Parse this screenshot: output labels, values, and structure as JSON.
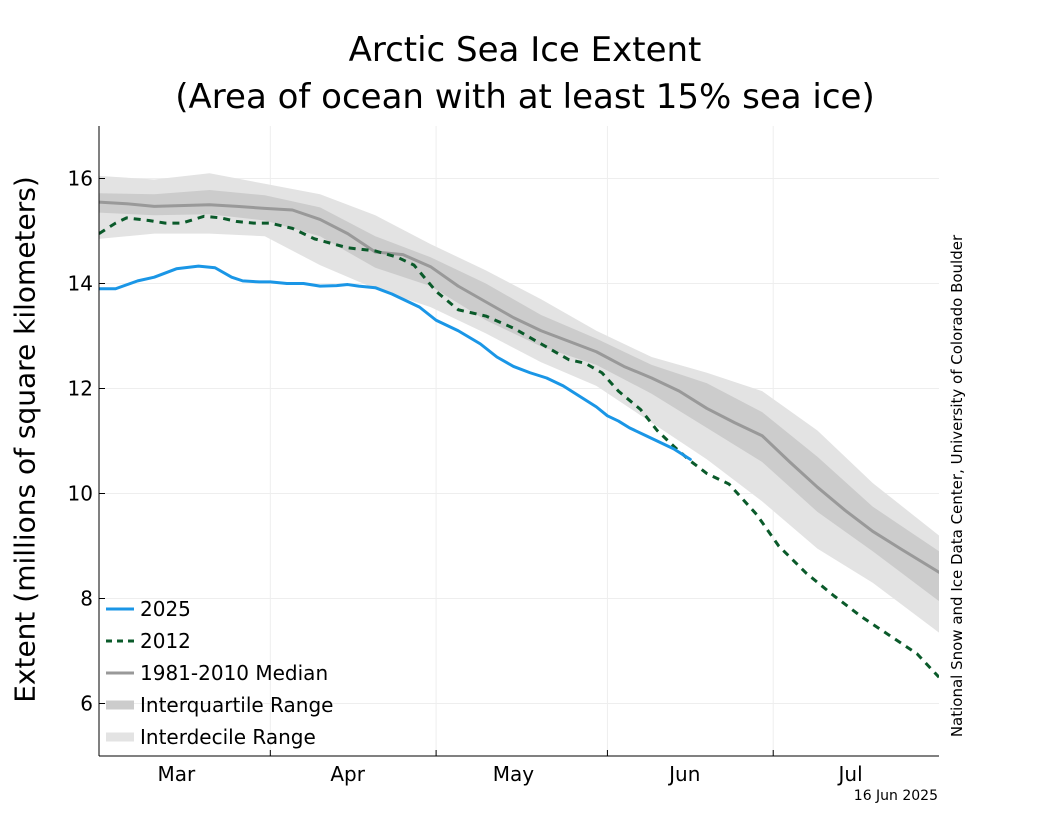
{
  "chart_data": {
    "type": "line",
    "title": "Arctic Sea Ice Extent",
    "subtitle": "(Area of ocean with at least 15% sea ice)",
    "ylabel": "Extent (millions of square kilometers)",
    "xlabel": "",
    "ylim": [
      5,
      17
    ],
    "yticks": [
      6,
      8,
      10,
      12,
      14,
      16
    ],
    "xrange_days": [
      0,
      152
    ],
    "x_ticks": [
      {
        "label": "Mar",
        "day": 14
      },
      {
        "label": "Apr",
        "day": 45
      },
      {
        "label": "May",
        "day": 75
      },
      {
        "label": "Jun",
        "day": 106
      },
      {
        "label": "Jul",
        "day": 136
      }
    ],
    "month_boundaries_days": [
      31,
      61,
      92,
      122
    ],
    "grid": true,
    "legend_position": "bottom-left",
    "credit": "National Snow and Ice Data Center, University of Colorado Boulder",
    "date_stamp": "16 Jun 2025",
    "series": [
      {
        "name": "2025",
        "style": "solid",
        "color": "#1a96e6",
        "x": [
          0,
          3,
          7,
          10,
          14,
          18,
          21,
          24,
          26,
          29,
          31,
          34,
          37,
          40,
          43,
          45,
          47,
          50,
          53,
          55,
          58,
          61,
          65,
          69,
          72,
          75,
          78,
          81,
          84,
          87,
          90,
          92,
          94,
          96,
          99,
          102,
          104,
          107
        ],
        "y": [
          13.9,
          13.9,
          14.05,
          14.12,
          14.28,
          14.33,
          14.3,
          14.12,
          14.05,
          14.03,
          14.03,
          14.0,
          14.0,
          13.95,
          13.96,
          13.98,
          13.95,
          13.92,
          13.8,
          13.7,
          13.55,
          13.3,
          13.1,
          12.85,
          12.6,
          12.42,
          12.3,
          12.2,
          12.05,
          11.85,
          11.65,
          11.48,
          11.38,
          11.25,
          11.1,
          10.95,
          10.85,
          10.65
        ]
      },
      {
        "name": "2012",
        "style": "dashed",
        "color": "#0a5a2a",
        "x": [
          0,
          3,
          5,
          9,
          12,
          15,
          19,
          22,
          25,
          28,
          31,
          35,
          39,
          45,
          50,
          54,
          57,
          61,
          65,
          70,
          75,
          80,
          85,
          88,
          91,
          94,
          98,
          101,
          104,
          107,
          110,
          114,
          119,
          123,
          128,
          133,
          138,
          143,
          148,
          152
        ],
        "y": [
          14.95,
          15.15,
          15.25,
          15.2,
          15.15,
          15.15,
          15.28,
          15.25,
          15.18,
          15.15,
          15.15,
          15.05,
          14.85,
          14.68,
          14.62,
          14.5,
          14.35,
          13.85,
          13.5,
          13.38,
          13.15,
          12.85,
          12.55,
          12.48,
          12.3,
          11.95,
          11.6,
          11.2,
          10.9,
          10.62,
          10.38,
          10.18,
          9.6,
          9.0,
          8.48,
          8.05,
          7.65,
          7.3,
          6.95,
          6.5
        ]
      },
      {
        "name": "1981-2010 Median",
        "style": "solid",
        "color": "#999999",
        "x": [
          0,
          5,
          10,
          20,
          25,
          30,
          35,
          40,
          45,
          50,
          55,
          60,
          65,
          70,
          75,
          80,
          85,
          90,
          95,
          100,
          105,
          110,
          115,
          120,
          125,
          130,
          135,
          140,
          145,
          152
        ],
        "y": [
          15.55,
          15.52,
          15.47,
          15.5,
          15.47,
          15.43,
          15.4,
          15.22,
          14.95,
          14.6,
          14.55,
          14.32,
          13.95,
          13.65,
          13.35,
          13.1,
          12.9,
          12.7,
          12.42,
          12.2,
          11.95,
          11.62,
          11.35,
          11.1,
          10.6,
          10.12,
          9.68,
          9.28,
          8.95,
          8.5
        ]
      }
    ],
    "bands": [
      {
        "name": "Interquartile Range",
        "color": "#cccccc",
        "x": [
          0,
          10,
          20,
          30,
          40,
          50,
          60,
          70,
          80,
          90,
          100,
          110,
          120,
          130,
          140,
          152
        ],
        "lower": [
          15.35,
          15.3,
          15.32,
          15.2,
          14.9,
          14.3,
          13.95,
          13.3,
          12.8,
          12.45,
          11.9,
          11.25,
          10.6,
          9.65,
          8.9,
          7.95
        ],
        "upper": [
          15.72,
          15.7,
          15.78,
          15.68,
          15.45,
          14.9,
          14.5,
          14.0,
          13.4,
          12.95,
          12.45,
          12.1,
          11.55,
          10.7,
          9.75,
          8.9
        ]
      },
      {
        "name": "Interdecile Range",
        "color": "#e3e3e3",
        "x": [
          0,
          10,
          20,
          30,
          40,
          50,
          60,
          70,
          80,
          90,
          100,
          110,
          120,
          130,
          140,
          152
        ],
        "lower": [
          14.85,
          14.95,
          14.95,
          14.9,
          14.35,
          13.9,
          13.55,
          13.05,
          12.5,
          12.05,
          11.35,
          10.65,
          9.85,
          8.95,
          8.3,
          7.35
        ],
        "upper": [
          16.05,
          15.98,
          16.1,
          15.9,
          15.7,
          15.3,
          14.75,
          14.25,
          13.7,
          13.1,
          12.6,
          12.3,
          11.95,
          11.2,
          10.2,
          9.2
        ]
      }
    ],
    "legend": [
      {
        "label": "2025",
        "kind": "line",
        "style": "solid",
        "color": "#1a96e6"
      },
      {
        "label": "2012",
        "kind": "line",
        "style": "dashed",
        "color": "#0a5a2a"
      },
      {
        "label": "1981-2010 Median",
        "kind": "line",
        "style": "solid",
        "color": "#999999"
      },
      {
        "label": "Interquartile Range",
        "kind": "band",
        "color": "#cccccc"
      },
      {
        "label": "Interdecile Range",
        "kind": "band",
        "color": "#e3e3e3"
      }
    ]
  }
}
